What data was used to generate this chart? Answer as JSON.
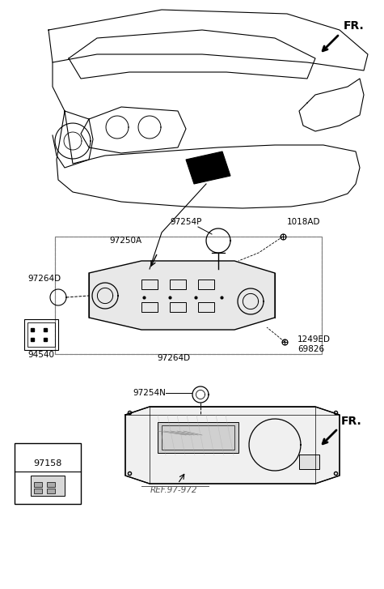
{
  "title": "",
  "bg_color": "#ffffff",
  "line_color": "#000000",
  "fig_width": 4.75,
  "fig_height": 7.27,
  "dpi": 100,
  "labels": {
    "FR_top": "FR.",
    "97250A": "97250A",
    "1018AD": "1018AD",
    "97254P": "97254P",
    "97264D_top": "97264D",
    "97264D_bot": "97264D",
    "94540": "94540",
    "1249ED": "1249ED",
    "69826": "69826",
    "97254N": "97254N",
    "FR_bot": "FR.",
    "97158": "97158",
    "REF97972": "REF.97-972"
  }
}
